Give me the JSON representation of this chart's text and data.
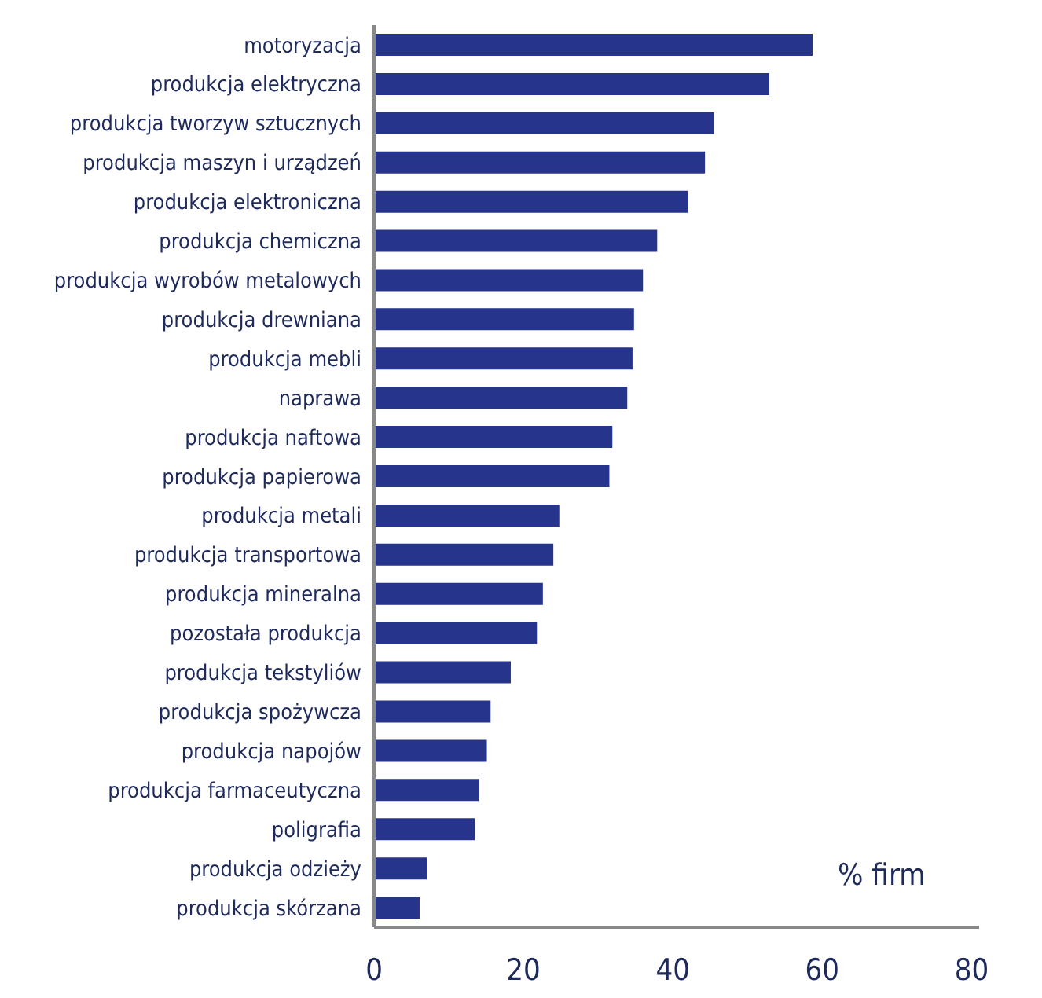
{
  "chart_data": {
    "type": "bar",
    "orientation": "horizontal",
    "categories": [
      "motoryzacja",
      "produkcja elektryczna",
      "produkcja tworzyw sztucznych",
      "produkcja maszyn i urządzeń",
      "produkcja elektroniczna",
      "produkcja chemiczna",
      "produkcja wyrobów metalowych",
      "produkcja drewniana",
      "produkcja mebli",
      "naprawa",
      "produkcja naftowa",
      "produkcja papierowa",
      "produkcja metali",
      "produkcja transportowa",
      "produkcja mineralna",
      "pozostała produkcja",
      "produkcja tekstyliów",
      "produkcja spożywcza",
      "produkcja napojów",
      "produkcja farmaceutyczna",
      "poligrafia",
      "produkcja odzieży",
      "produkcja skórzana"
    ],
    "values": [
      58.7,
      52.9,
      45.5,
      44.3,
      42.0,
      37.9,
      36.0,
      34.8,
      34.6,
      33.9,
      31.9,
      31.5,
      24.8,
      24.0,
      22.6,
      21.8,
      18.3,
      15.6,
      15.1,
      14.1,
      13.5,
      7.1,
      6.1
    ],
    "color": "#27348b",
    "xlim": [
      0,
      81
    ],
    "xticks": [
      0,
      20,
      40,
      60,
      80
    ],
    "annotations": [
      "% firm"
    ]
  }
}
